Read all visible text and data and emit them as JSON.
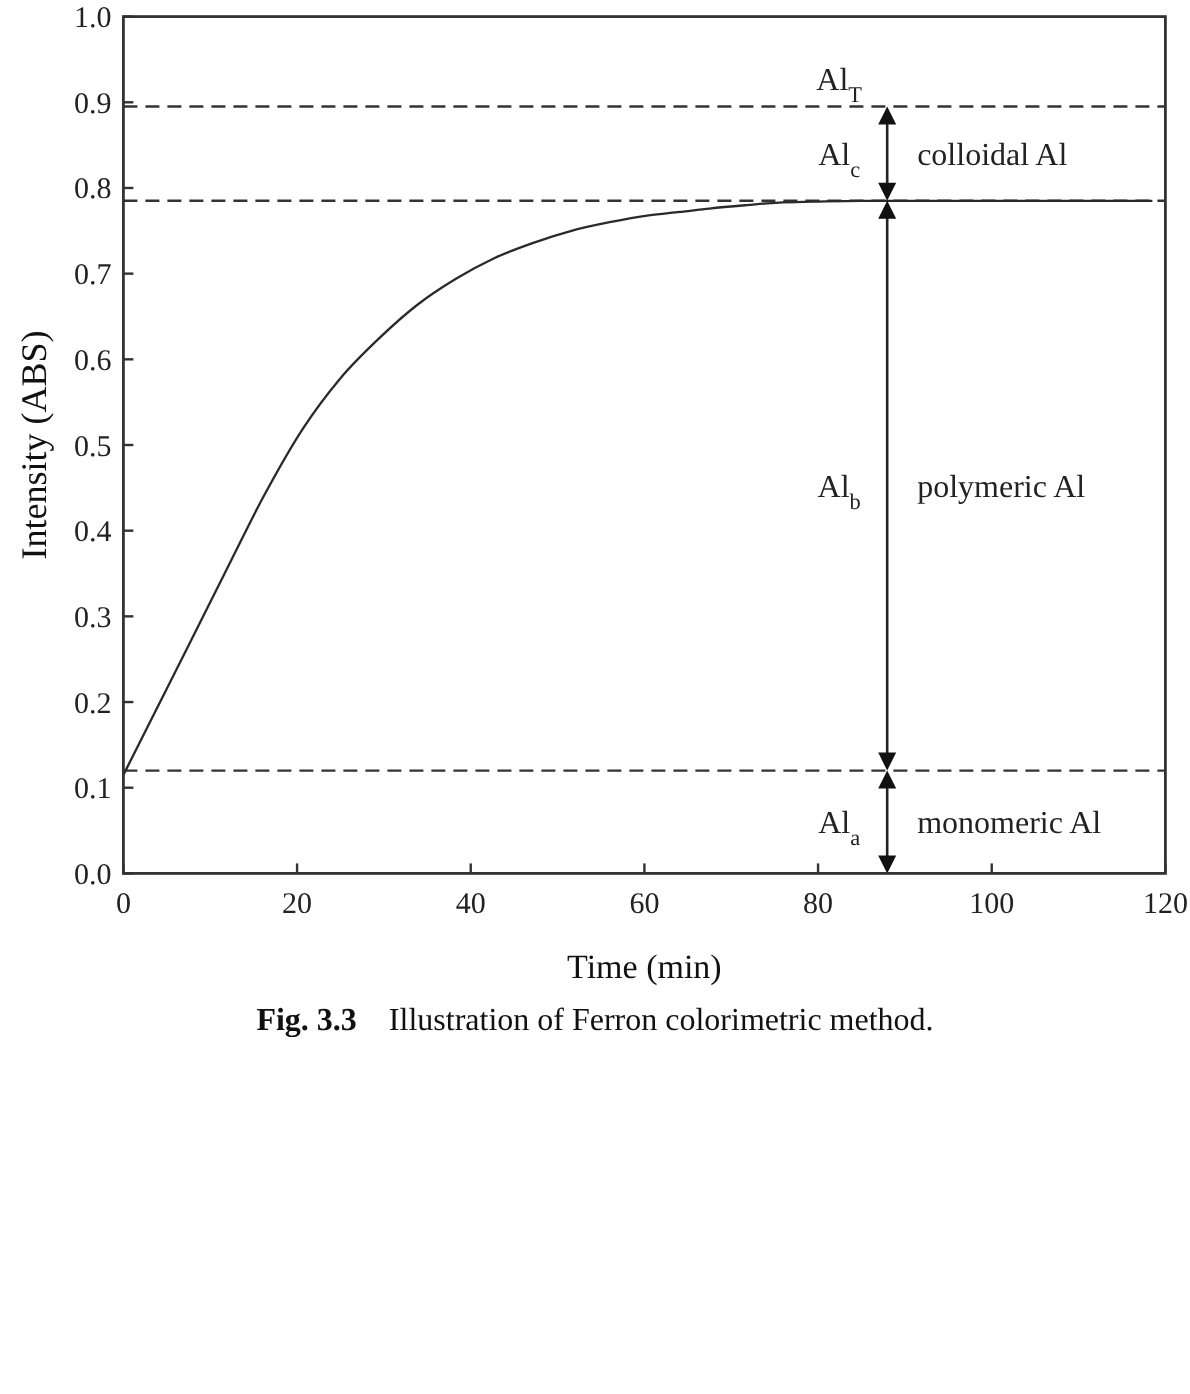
{
  "chart_data": {
    "type": "line",
    "xlabel": "Time (min)",
    "ylabel": "Intensity (ABS)",
    "x": [
      0,
      7.3,
      11.7,
      16.2,
      20.6,
      25,
      29.5,
      33.9,
      38.3,
      42.7,
      47.2,
      51.6,
      56,
      60.5,
      64.1,
      67.5,
      71.8,
      75.5,
      79.5,
      85,
      95,
      105,
      118.5
    ],
    "series": [
      {
        "color": "#2a2a2a",
        "values": [
          0.115,
          0.262,
          0.351,
          0.441,
          0.518,
          0.578,
          0.625,
          0.664,
          0.694,
          0.718,
          0.736,
          0.75,
          0.76,
          0.768,
          0.772,
          0.776,
          0.78,
          0.783,
          0.784,
          0.785,
          0.785,
          0.785,
          0.785
        ]
      }
    ],
    "xlim": [
      0,
      120
    ],
    "xticks": [
      0,
      20,
      40,
      60,
      80,
      100,
      120
    ],
    "ylim": [
      0,
      1
    ],
    "yticks": [
      {
        "value": 0,
        "label": "0.0"
      },
      0.1,
      0.2,
      0.3,
      0.4,
      0.5,
      0.6,
      0.7,
      0.8,
      0.9,
      {
        "value": 1,
        "label": "1.0"
      }
    ],
    "ref_lines": [
      {
        "axis": "y",
        "value": 0.895,
        "color": "#333333",
        "line_style": "dashed"
      },
      {
        "axis": "y",
        "value": 0.785,
        "color": "#333333",
        "line_style": "dashed"
      },
      {
        "axis": "y",
        "value": 0.12,
        "color": "#333333",
        "line_style": "dashed"
      }
    ],
    "annotations": [
      "Al$_{T}$",
      "Al$_{c}$",
      "colloidal Al",
      "Al$_{b}$",
      "polymeric Al",
      "Al$_{a}$",
      "monomeric Al",
      "Fig. 3.3    Illustration of Ferron colorimetric method."
    ]
  }
}
